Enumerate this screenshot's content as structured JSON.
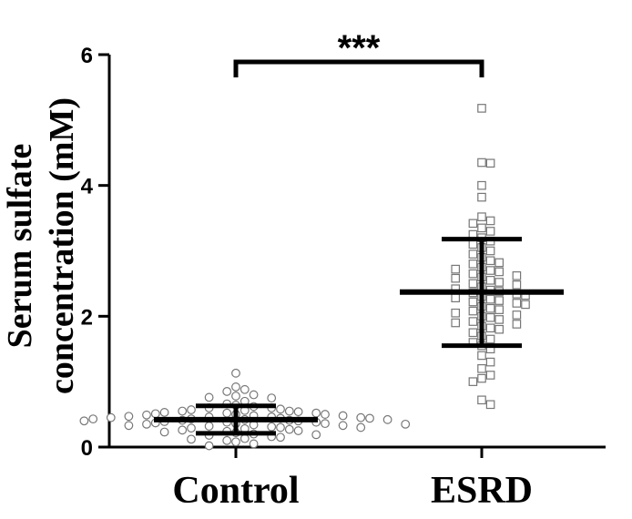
{
  "chart_data": {
    "type": "scatter",
    "ylabel_line1": "Serum sulfate",
    "ylabel_line2": "concentration (mM)",
    "ylim": [
      0,
      6
    ],
    "yticks": [
      "0",
      "2",
      "4",
      "6"
    ],
    "categories": [
      "Control",
      "ESRD"
    ],
    "significance": "***",
    "grid": false,
    "legend": "none",
    "series": [
      {
        "category": "Control",
        "marker": "circle",
        "mean": 0.42,
        "sd_upper": 0.63,
        "sd_lower": 0.21,
        "values": [
          1.13,
          0.92,
          0.88,
          0.85,
          0.8,
          0.78,
          0.76,
          0.75,
          0.7,
          0.66,
          0.64,
          0.62,
          0.6,
          0.6,
          0.58,
          0.57,
          0.56,
          0.55,
          0.55,
          0.54,
          0.53,
          0.52,
          0.52,
          0.51,
          0.5,
          0.5,
          0.49,
          0.48,
          0.48,
          0.47,
          0.46,
          0.46,
          0.45,
          0.45,
          0.44,
          0.44,
          0.43,
          0.43,
          0.42,
          0.42,
          0.41,
          0.41,
          0.4,
          0.4,
          0.39,
          0.38,
          0.38,
          0.37,
          0.36,
          0.36,
          0.35,
          0.35,
          0.34,
          0.33,
          0.33,
          0.32,
          0.31,
          0.3,
          0.3,
          0.29,
          0.28,
          0.27,
          0.26,
          0.25,
          0.24,
          0.23,
          0.22,
          0.2,
          0.19,
          0.18,
          0.16,
          0.15,
          0.13,
          0.12,
          0.1,
          0.08,
          0.05,
          0.02
        ]
      },
      {
        "category": "ESRD",
        "marker": "square",
        "mean": 2.37,
        "sd_upper": 3.18,
        "sd_lower": 1.55,
        "values": [
          5.18,
          4.35,
          4.34,
          4.0,
          3.82,
          3.52,
          3.46,
          3.42,
          3.35,
          3.3,
          3.25,
          3.2,
          3.15,
          3.1,
          3.05,
          3.0,
          2.95,
          2.9,
          2.85,
          2.82,
          2.8,
          2.75,
          2.72,
          2.7,
          2.68,
          2.65,
          2.62,
          2.6,
          2.58,
          2.55,
          2.52,
          2.5,
          2.48,
          2.45,
          2.42,
          2.4,
          2.38,
          2.36,
          2.34,
          2.32,
          2.3,
          2.28,
          2.26,
          2.24,
          2.22,
          2.2,
          2.18,
          2.15,
          2.12,
          2.1,
          2.08,
          2.05,
          2.02,
          2.0,
          1.98,
          1.95,
          1.92,
          1.9,
          1.88,
          1.85,
          1.82,
          1.8,
          1.75,
          1.7,
          1.65,
          1.6,
          1.55,
          1.5,
          1.4,
          1.3,
          1.2,
          1.1,
          1.05,
          1.0,
          0.72,
          0.65
        ]
      }
    ]
  }
}
